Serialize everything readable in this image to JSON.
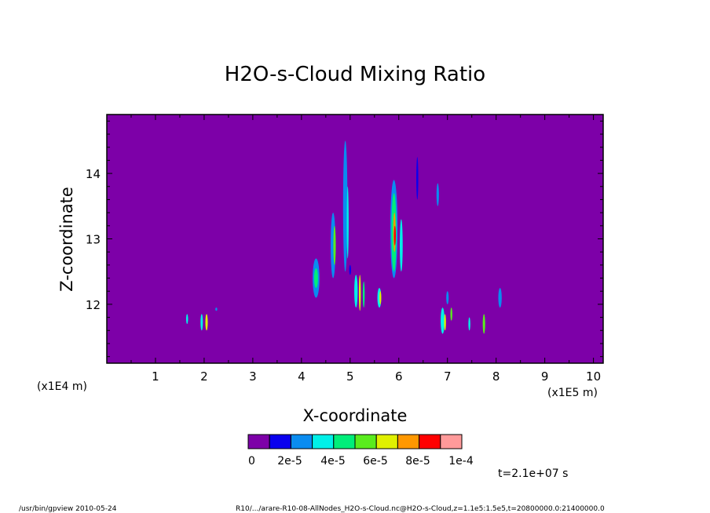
{
  "chart_data": {
    "type": "heatmap",
    "title": "H2O-s-Cloud Mixing Ratio",
    "xlabel": "X-coordinate",
    "ylabel": "Z-coordinate",
    "x_multiplier_left": "(x1E4 m)",
    "x_multiplier_right": "(x1E5 m)",
    "xlim": [
      0,
      10.2
    ],
    "ylim": [
      11.1,
      14.9
    ],
    "x_ticks": [
      1,
      2,
      3,
      4,
      5,
      6,
      7,
      8,
      9,
      10
    ],
    "x_tick_labels": [
      "1",
      "2",
      "3",
      "4",
      "5",
      "6",
      "7",
      "8",
      "9",
      "10"
    ],
    "y_ticks": [
      12,
      13,
      14
    ],
    "y_tick_labels": [
      "12",
      "13",
      "14"
    ],
    "background_color": "#7d00a8",
    "colorbar": {
      "colors": [
        "#7d00a8",
        "#0a00ee",
        "#0a8cf0",
        "#00f0e8",
        "#00ee7a",
        "#5aec1e",
        "#e0f000",
        "#ff9800",
        "#ff0000",
        "#ff9a9a"
      ],
      "labels": [
        "0",
        "2e-5",
        "4e-5",
        "6e-5",
        "8e-5",
        "1e-4"
      ]
    },
    "time_label": "t=2.1e+07 s",
    "features": [
      {
        "x": 4.9,
        "y0": 12.5,
        "y1": 14.5,
        "w": 0.09,
        "level": 2
      },
      {
        "x": 4.95,
        "y0": 12.7,
        "y1": 13.8,
        "w": 0.04,
        "level": 3
      },
      {
        "x": 4.65,
        "y0": 12.4,
        "y1": 13.4,
        "w": 0.1,
        "level": 2
      },
      {
        "x": 4.68,
        "y0": 12.6,
        "y1": 13.2,
        "w": 0.05,
        "level": 5
      },
      {
        "x": 4.3,
        "y0": 12.1,
        "y1": 12.7,
        "w": 0.14,
        "level": 2
      },
      {
        "x": 4.3,
        "y0": 12.25,
        "y1": 12.55,
        "w": 0.08,
        "level": 4
      },
      {
        "x": 5.9,
        "y0": 12.4,
        "y1": 13.9,
        "w": 0.15,
        "level": 2
      },
      {
        "x": 5.9,
        "y0": 12.5,
        "y1": 13.7,
        "w": 0.1,
        "level": 4
      },
      {
        "x": 5.91,
        "y0": 12.8,
        "y1": 13.4,
        "w": 0.05,
        "level": 7
      },
      {
        "x": 5.92,
        "y0": 12.9,
        "y1": 13.2,
        "w": 0.03,
        "level": 8
      },
      {
        "x": 6.05,
        "y0": 12.5,
        "y1": 13.3,
        "w": 0.06,
        "level": 3
      },
      {
        "x": 6.38,
        "y0": 13.6,
        "y1": 14.25,
        "w": 0.04,
        "level": 1
      },
      {
        "x": 6.8,
        "y0": 13.5,
        "y1": 13.85,
        "w": 0.05,
        "level": 2
      },
      {
        "x": 5.12,
        "y0": 11.95,
        "y1": 12.45,
        "w": 0.07,
        "level": 3
      },
      {
        "x": 5.2,
        "y0": 11.9,
        "y1": 12.45,
        "w": 0.04,
        "level": 6
      },
      {
        "x": 5.28,
        "y0": 11.95,
        "y1": 12.35,
        "w": 0.04,
        "level": 4
      },
      {
        "x": 5.6,
        "y0": 11.95,
        "y1": 12.25,
        "w": 0.08,
        "level": 3
      },
      {
        "x": 5.62,
        "y0": 12.0,
        "y1": 12.2,
        "w": 0.03,
        "level": 6
      },
      {
        "x": 5.0,
        "y0": 12.45,
        "y1": 12.6,
        "w": 0.04,
        "level": 1
      },
      {
        "x": 1.65,
        "y0": 11.7,
        "y1": 11.85,
        "w": 0.04,
        "level": 3
      },
      {
        "x": 1.95,
        "y0": 11.6,
        "y1": 11.85,
        "w": 0.05,
        "level": 3
      },
      {
        "x": 2.05,
        "y0": 11.6,
        "y1": 11.85,
        "w": 0.05,
        "level": 6
      },
      {
        "x": 2.25,
        "y0": 11.9,
        "y1": 11.95,
        "w": 0.03,
        "level": 2
      },
      {
        "x": 6.9,
        "y0": 11.55,
        "y1": 11.95,
        "w": 0.08,
        "level": 3
      },
      {
        "x": 6.95,
        "y0": 11.6,
        "y1": 11.85,
        "w": 0.03,
        "level": 6
      },
      {
        "x": 7.0,
        "y0": 12.0,
        "y1": 12.2,
        "w": 0.05,
        "level": 2
      },
      {
        "x": 7.08,
        "y0": 11.75,
        "y1": 11.95,
        "w": 0.04,
        "level": 5
      },
      {
        "x": 7.45,
        "y0": 11.6,
        "y1": 11.8,
        "w": 0.04,
        "level": 3
      },
      {
        "x": 7.75,
        "y0": 11.55,
        "y1": 11.85,
        "w": 0.05,
        "level": 5
      },
      {
        "x": 8.08,
        "y0": 11.95,
        "y1": 12.25,
        "w": 0.07,
        "level": 2
      }
    ]
  },
  "footer": {
    "left": "/usr/bin/gpview   2010-05-24",
    "right": "R10/.../arare-R10-08-AllNodes_H2O-s-Cloud.nc@H2O-s-Cloud,z=1.1e5:1.5e5,t=20800000.0:21400000.0"
  }
}
